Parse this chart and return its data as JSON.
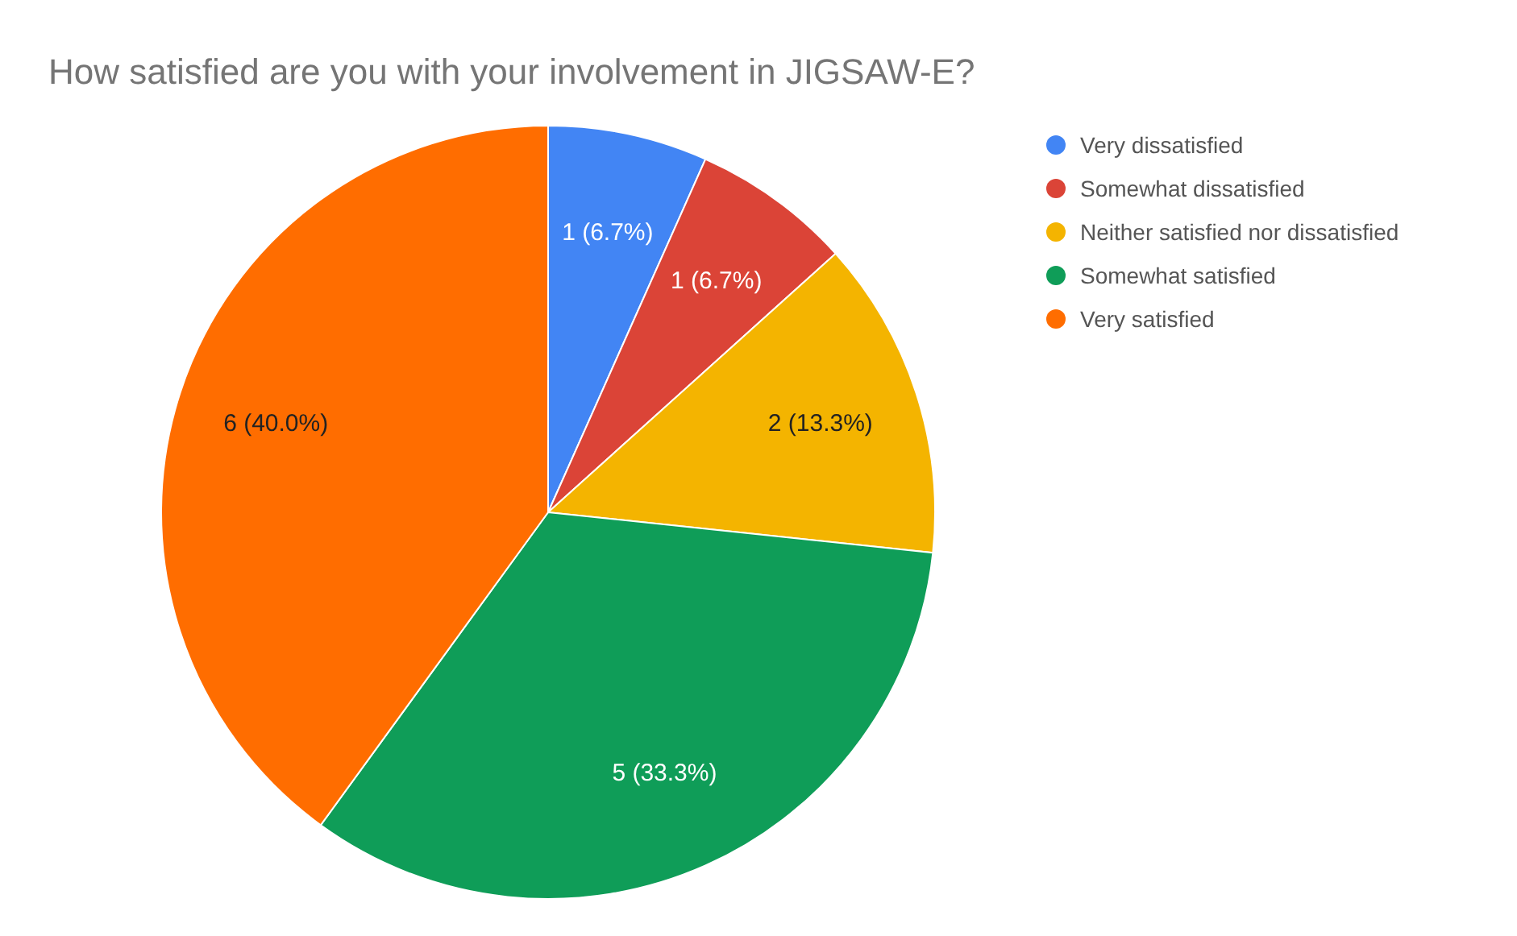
{
  "chart_data": {
    "type": "pie",
    "title": "How satisfied are you with your involvement in JIGSAW-E?",
    "categories": [
      "Very dissatisfied",
      "Somewhat dissatisfied",
      "Neither satisfied nor dissatisfied",
      "Somewhat satisfied",
      "Very satisfied"
    ],
    "values": [
      1,
      1,
      2,
      5,
      6
    ],
    "value_labels": [
      "1 (6.7%)",
      "1 (6.7%)",
      "2 (13.3%)",
      "5 (33.3%)",
      "6 (40.0%)"
    ],
    "colors": [
      "#4285f4",
      "#db4437",
      "#f4b400",
      "#0f9d58",
      "#ff6d00"
    ],
    "legend": "right"
  }
}
